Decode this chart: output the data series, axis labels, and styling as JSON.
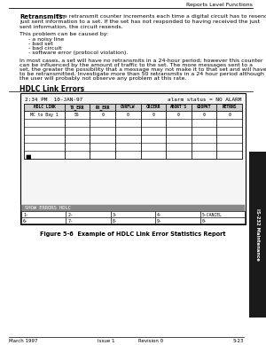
{
  "page_header": "Reports Level Functions",
  "section_header": "HDLC Link Errors",
  "bold_label": "Retransmits:",
  "body_line1": "The retransmit counter increments each time a digital circuit has to resend",
  "body_line2": "just sent information to a set. If the set has not responded to having received the just",
  "body_line3": "sent information, the circuit resends.",
  "problem_intro": "This problem can be caused by:",
  "bullet_items": [
    "- a noisy line",
    "- bad set",
    "- bad circuit",
    "- software error (protocol violation)."
  ],
  "footer_lines": [
    "In most cases, a set will have no retransmits in a 24-hour period; however this counter",
    "can be influenced by the amount of traffic to the set. The more messages sent to a",
    "set, the greater the possibility that a message may not make it to that set and will have",
    "to be retransmitted. Investigate more than 50 retransmits in a 24 hour period although",
    "the user will probably not observe any problem at this rate."
  ],
  "terminal_header": "2:34 PM  10-JAN-97",
  "alarm_status": "alarm status = NO ALARM",
  "table_columns": [
    "HDLC LINK",
    "TX_ERR",
    "RX_ERR",
    "OVRFLW",
    "CRCERR",
    "ABORT'S",
    "GOOPKT",
    "RETRNS"
  ],
  "table_row": [
    "MC to Bay 1",
    "55",
    "0",
    "0",
    "0",
    "0",
    "0",
    "0"
  ],
  "softkey_label": "SHOW ERRORS HDLC",
  "softkeys_row1": [
    "1-",
    "2-",
    "3-",
    "4-",
    "5-CANCEL"
  ],
  "softkeys_row2": [
    "6-",
    "7-",
    "8-",
    "9-",
    "0-"
  ],
  "figure_caption": "Figure 5-6  Example of HDLC Link Error Statistics Report",
  "footer_left": "March 1997",
  "footer_mid1": "Issue 1",
  "footer_mid2": "Revision 0",
  "footer_right": "5-23",
  "tab_label": "IS-232 Maintenance",
  "bg_color": "#ffffff",
  "text_color": "#000000",
  "col_widths_raw": [
    40,
    25,
    25,
    25,
    25,
    25,
    25,
    25
  ]
}
